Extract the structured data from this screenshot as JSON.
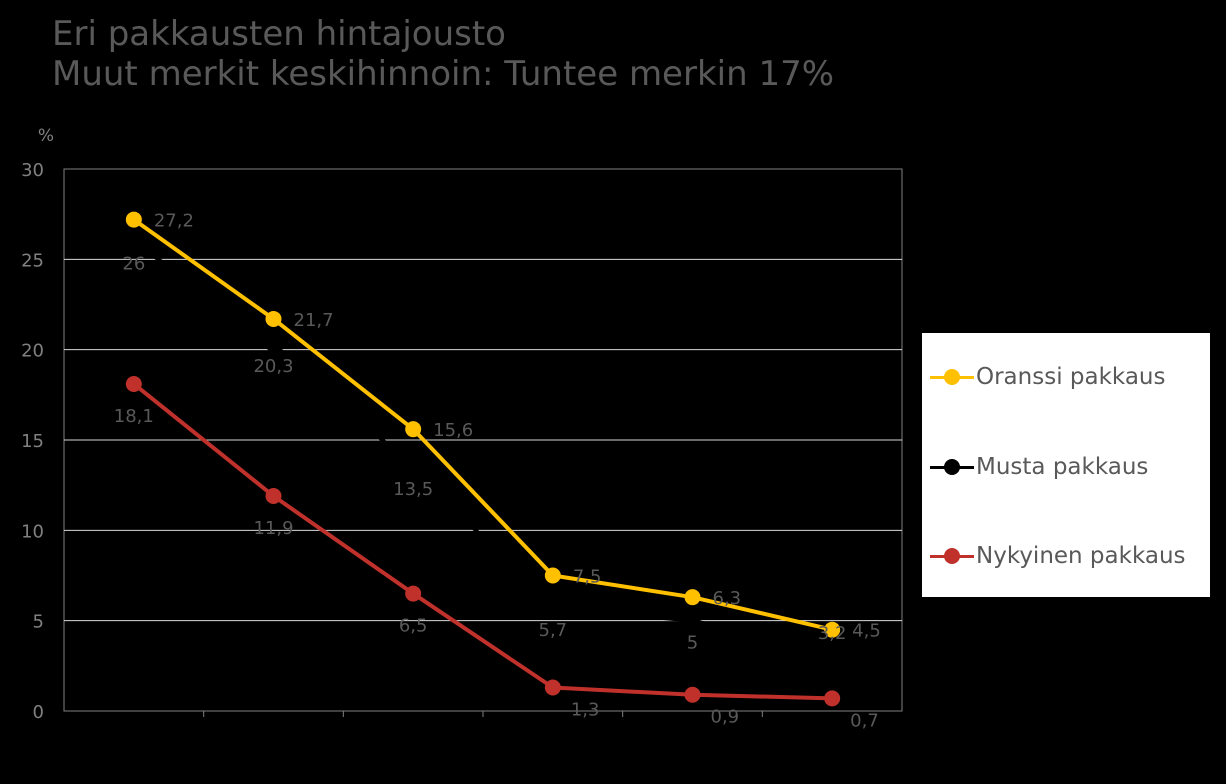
{
  "title": {
    "line1": "Eri pakkausten hintajousto",
    "line2": "Muut merkit keskihinnoin: Tuntee merkin 17%"
  },
  "chart_data": {
    "type": "line",
    "title": "Eri pakkausten hintajousto Muut merkit keskihinnoin: Tuntee merkin 17%",
    "ylabel": "%",
    "xlabel": "",
    "ylim": [
      0,
      30
    ],
    "yticks": [
      0,
      5,
      10,
      15,
      20,
      25,
      30
    ],
    "x": [
      1,
      2,
      3,
      4,
      5,
      6
    ],
    "grid": true,
    "legend_position": "right",
    "series": [
      {
        "name": "Oranssi pakkaus",
        "color": "#FFC000",
        "values": [
          27.2,
          21.7,
          15.6,
          7.5,
          6.3,
          4.5
        ],
        "labels": [
          "27,2",
          "21,7",
          "15,6",
          "7,5",
          "6,3",
          "4,5"
        ]
      },
      {
        "name": "Musta pakkaus",
        "color": "#000000",
        "values": [
          26,
          20.3,
          13.5,
          5.7,
          5,
          3.2
        ],
        "labels": [
          "26",
          "20,3",
          "13,5",
          "5,7",
          "5",
          "3,2"
        ]
      },
      {
        "name": "Nykyinen pakkaus",
        "color": "#C0312B",
        "values": [
          18.1,
          11.9,
          6.5,
          1.3,
          0.9,
          0.7
        ],
        "labels": [
          "18,1",
          "11,9",
          "6,5",
          "1,3",
          "0,9",
          "0,7"
        ]
      }
    ]
  }
}
